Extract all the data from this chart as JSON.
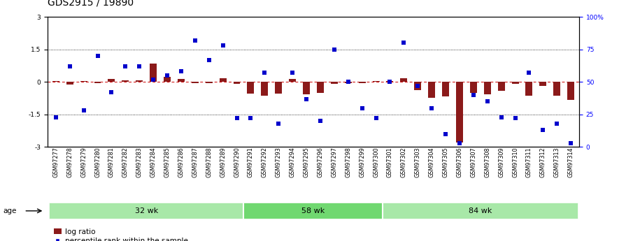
{
  "title": "GDS2915 / 19890",
  "samples": [
    "GSM97277",
    "GSM97278",
    "GSM97279",
    "GSM97280",
    "GSM97281",
    "GSM97282",
    "GSM97283",
    "GSM97284",
    "GSM97285",
    "GSM97286",
    "GSM97287",
    "GSM97288",
    "GSM97289",
    "GSM97290",
    "GSM97291",
    "GSM97292",
    "GSM97293",
    "GSM97294",
    "GSM97295",
    "GSM97296",
    "GSM97297",
    "GSM97298",
    "GSM97299",
    "GSM97300",
    "GSM97301",
    "GSM97302",
    "GSM97303",
    "GSM97304",
    "GSM97305",
    "GSM97306",
    "GSM97307",
    "GSM97308",
    "GSM97309",
    "GSM97310",
    "GSM97311",
    "GSM97312",
    "GSM97313",
    "GSM97314"
  ],
  "log_ratio": [
    0.05,
    -0.12,
    0.04,
    -0.05,
    0.13,
    0.08,
    0.08,
    0.85,
    0.22,
    0.13,
    -0.04,
    -0.04,
    0.18,
    -0.08,
    -0.55,
    -0.65,
    -0.55,
    0.13,
    -0.58,
    -0.52,
    -0.08,
    -0.04,
    -0.04,
    0.04,
    0.04,
    0.18,
    -0.38,
    -0.72,
    -0.68,
    -2.8,
    -0.52,
    -0.58,
    -0.42,
    -0.08,
    -0.62,
    -0.18,
    -0.62,
    -0.82
  ],
  "percentile_rank": [
    23,
    62,
    28,
    70,
    42,
    62,
    62,
    52,
    55,
    58,
    82,
    67,
    78,
    22,
    22,
    57,
    18,
    57,
    37,
    20,
    75,
    50,
    30,
    22,
    50,
    80,
    47,
    30,
    10,
    3,
    40,
    35,
    23,
    22,
    57,
    13,
    18,
    3
  ],
  "groups": [
    {
      "label": "32 wk",
      "start": 0,
      "end": 14,
      "color": "#a8e8a8"
    },
    {
      "label": "58 wk",
      "start": 14,
      "end": 24,
      "color": "#70d870"
    },
    {
      "label": "84 wk",
      "start": 24,
      "end": 38,
      "color": "#a8e8a8"
    }
  ],
  "ylim_left": [
    -3,
    3
  ],
  "ylim_right": [
    0,
    100
  ],
  "yticks_left": [
    -3,
    -1.5,
    0,
    1.5,
    3
  ],
  "yticks_right": [
    0,
    25,
    50,
    75,
    100
  ],
  "ytick_labels_right": [
    "0",
    "25",
    "50",
    "75",
    "100%"
  ],
  "bar_color": "#8B1A1A",
  "dot_color": "#0000CC",
  "legend_bar_color": "#8B1A1A",
  "legend_dot_color": "#0000CC",
  "legend_bar_label": "log ratio",
  "legend_dot_label": "percentile rank within the sample",
  "age_label": "age",
  "background_color": "#ffffff",
  "title_fontsize": 10,
  "tick_fontsize": 6.5,
  "label_fontsize": 8
}
